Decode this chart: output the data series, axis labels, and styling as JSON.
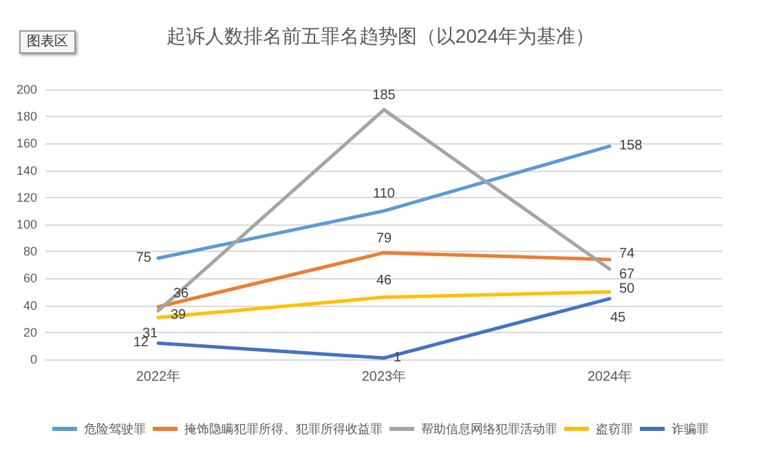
{
  "chart_data": {
    "type": "line",
    "title": "起诉人数排名前五罪名趋势图（以2024年为基准）",
    "annotations": [
      "图表区"
    ],
    "categories": [
      "2022年",
      "2023年",
      "2024年"
    ],
    "series": [
      {
        "name": "危险驾驶罪",
        "color": "#5b9bd5",
        "values": [
          75,
          110,
          158
        ]
      },
      {
        "name": "掩饰隐瞒犯罪所得、犯罪所得收益罪",
        "color": "#ed7d31",
        "values": [
          39,
          79,
          74
        ]
      },
      {
        "name": "帮助信息网络犯罪活动罪",
        "color": "#a5a5a5",
        "values": [
          36,
          185,
          67
        ]
      },
      {
        "name": "盗窃罪",
        "color": "#ffc000",
        "values": [
          31,
          46,
          50
        ]
      },
      {
        "name": "诈骗罪",
        "color": "#4472c4",
        "values": [
          12,
          1,
          45
        ]
      }
    ],
    "ylim": [
      0,
      200
    ],
    "yticks": [
      0,
      20,
      40,
      60,
      80,
      100,
      120,
      140,
      160,
      180,
      200
    ],
    "grid": "y",
    "legend": "bottom",
    "data_labels": true,
    "marker": "none",
    "line_style": "solid"
  }
}
